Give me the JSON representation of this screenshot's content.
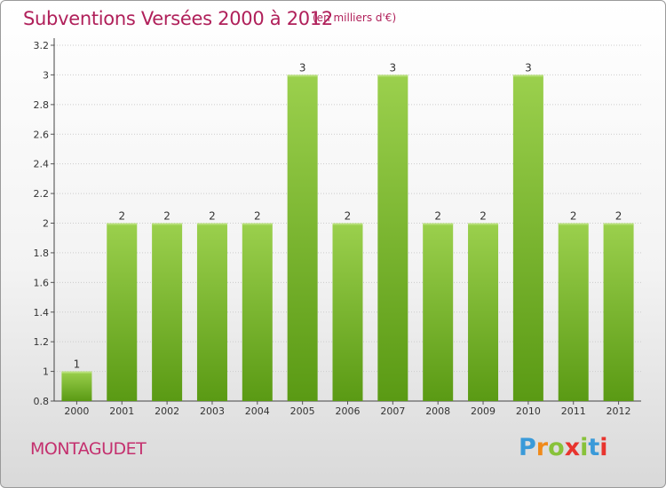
{
  "title": "Subventions Versées 2000 à 2012",
  "subtitle": "(en milliers d'€)",
  "place": "MONTAGUDET",
  "logo": {
    "text": "Proxiti"
  },
  "colors": {
    "title": "#b0205a",
    "bar_light": "#9bd04d",
    "bar_dark": "#5a9a14",
    "grid": "#cccccc"
  },
  "chart_data": {
    "type": "bar",
    "title": "Subventions Versées 2000 à 2012",
    "subtitle": "(en milliers d'€)",
    "categories": [
      "2000",
      "2001",
      "2002",
      "2003",
      "2004",
      "2005",
      "2006",
      "2007",
      "2008",
      "2009",
      "2010",
      "2011",
      "2012"
    ],
    "values": [
      1,
      2,
      2,
      2,
      2,
      3,
      2,
      3,
      2,
      2,
      3,
      2,
      2
    ],
    "data_labels": [
      "1",
      "2",
      "2",
      "2",
      "2",
      "3",
      "2",
      "3",
      "2",
      "2",
      "3",
      "2",
      "2"
    ],
    "xlabel": "",
    "ylabel": "",
    "ylim": [
      0.8,
      3.2
    ],
    "yticks": [
      "0.8",
      "1",
      "1.2",
      "1.4",
      "1.6",
      "1.8",
      "2",
      "2.2",
      "2.4",
      "2.6",
      "2.8",
      "3",
      "3.2"
    ],
    "grid": true
  }
}
